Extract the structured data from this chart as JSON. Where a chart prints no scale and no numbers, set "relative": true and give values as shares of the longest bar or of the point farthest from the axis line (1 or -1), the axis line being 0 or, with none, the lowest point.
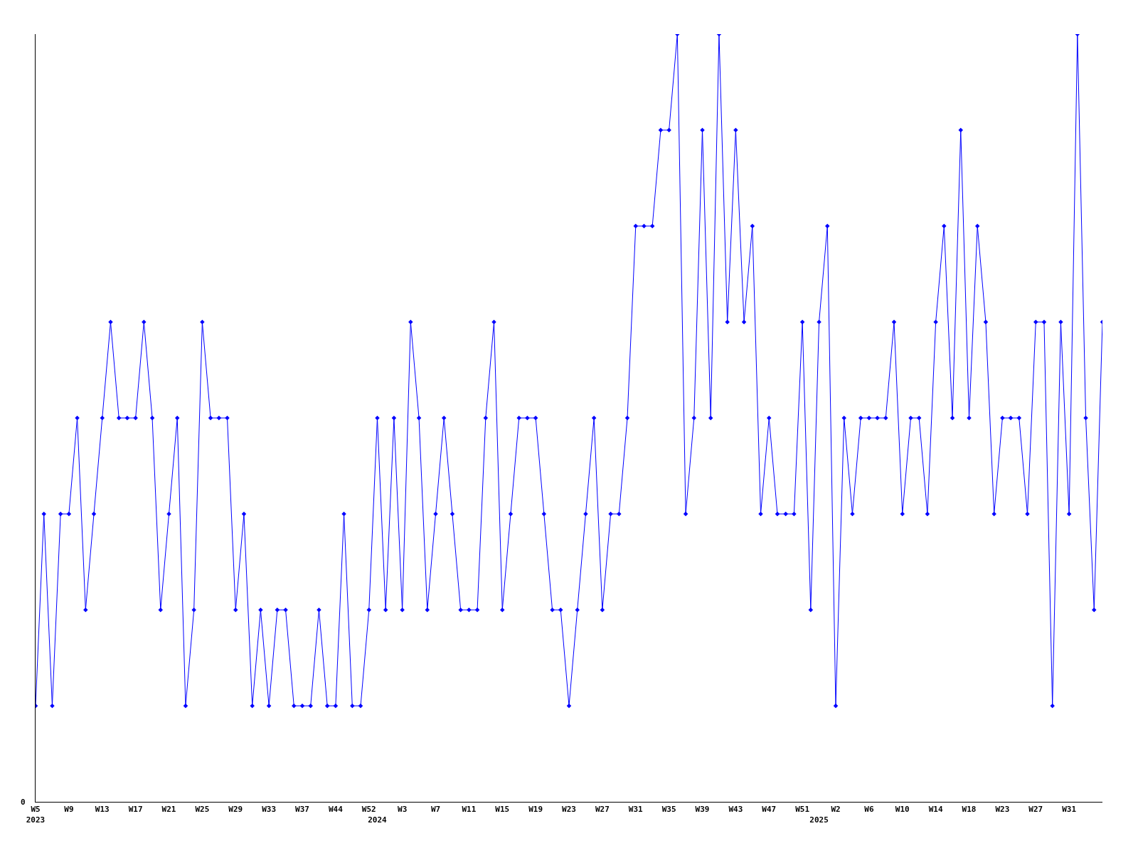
{
  "chart_data": {
    "type": "line",
    "relative": true,
    "grid": false,
    "marker": "diamond",
    "line_style": "solid",
    "categories": [
      "W5\n2023",
      null,
      null,
      null,
      "W9",
      null,
      null,
      null,
      "W13",
      null,
      null,
      null,
      "W17",
      null,
      null,
      null,
      "W21",
      null,
      null,
      null,
      "W25",
      null,
      null,
      null,
      "W29",
      null,
      null,
      null,
      "W33",
      null,
      null,
      null,
      "W37",
      null,
      null,
      null,
      "W44",
      null,
      null,
      null,
      "W52",
      "\n2024",
      null,
      null,
      "W3",
      null,
      null,
      null,
      "W7",
      null,
      null,
      null,
      "W11",
      null,
      null,
      null,
      "W15",
      null,
      null,
      null,
      "W19",
      null,
      null,
      null,
      "W23",
      null,
      null,
      null,
      "W27",
      null,
      null,
      null,
      "W31",
      null,
      null,
      null,
      "W35",
      null,
      null,
      null,
      "W39",
      null,
      null,
      null,
      "W43",
      null,
      null,
      null,
      "W47",
      null,
      null,
      null,
      "W51",
      null,
      "\n2025",
      null,
      "W2",
      null,
      null,
      null,
      "W6",
      null,
      null,
      null,
      "W10",
      null,
      null,
      null,
      "W14",
      null,
      null,
      null,
      "W18",
      null,
      null,
      null,
      "W23",
      null,
      null,
      null,
      "W27",
      null,
      null,
      null,
      "W31",
      null,
      null,
      null,
      null
    ],
    "series": [
      {
        "color": "#0000ff",
        "values": [
          0.125,
          0.375,
          0.125,
          0.375,
          0.375,
          0.5,
          0.25,
          0.375,
          0.5,
          0.625,
          0.5,
          0.5,
          0.5,
          0.625,
          0.5,
          0.25,
          0.375,
          0.5,
          0.125,
          0.25,
          0.625,
          0.5,
          0.5,
          0.5,
          0.25,
          0.375,
          0.125,
          0.25,
          0.125,
          0.25,
          0.25,
          0.125,
          0.125,
          0.125,
          0.25,
          0.125,
          0.125,
          0.375,
          0.125,
          0.125,
          0.25,
          0.5,
          0.25,
          0.5,
          0.25,
          0.625,
          0.5,
          0.25,
          0.375,
          0.5,
          0.375,
          0.25,
          0.25,
          0.25,
          0.5,
          0.625,
          0.25,
          0.375,
          0.5,
          0.5,
          0.5,
          0.375,
          0.25,
          0.25,
          0.125,
          0.25,
          0.375,
          0.5,
          0.25,
          0.375,
          0.375,
          0.5,
          0.75,
          0.75,
          0.75,
          0.875,
          0.875,
          1,
          0.375,
          0.5,
          0.875,
          0.5,
          1,
          0.625,
          0.875,
          0.625,
          0.75,
          0.375,
          0.5,
          0.375,
          0.375,
          0.375,
          0.625,
          0.25,
          0.625,
          0.75,
          0.125,
          0.5,
          0.375,
          0.5,
          0.5,
          0.5,
          0.5,
          0.625,
          0.375,
          0.5,
          0.5,
          0.375,
          0.625,
          0.75,
          0.5,
          0.875,
          0.5,
          0.75,
          0.625,
          0.375,
          0.5,
          0.5,
          0.5,
          0.375,
          0.625,
          0.625,
          0.125,
          0.625,
          0.375,
          1,
          0.5,
          0.25,
          0.625
        ]
      }
    ],
    "annotations": [
      "0"
    ]
  }
}
